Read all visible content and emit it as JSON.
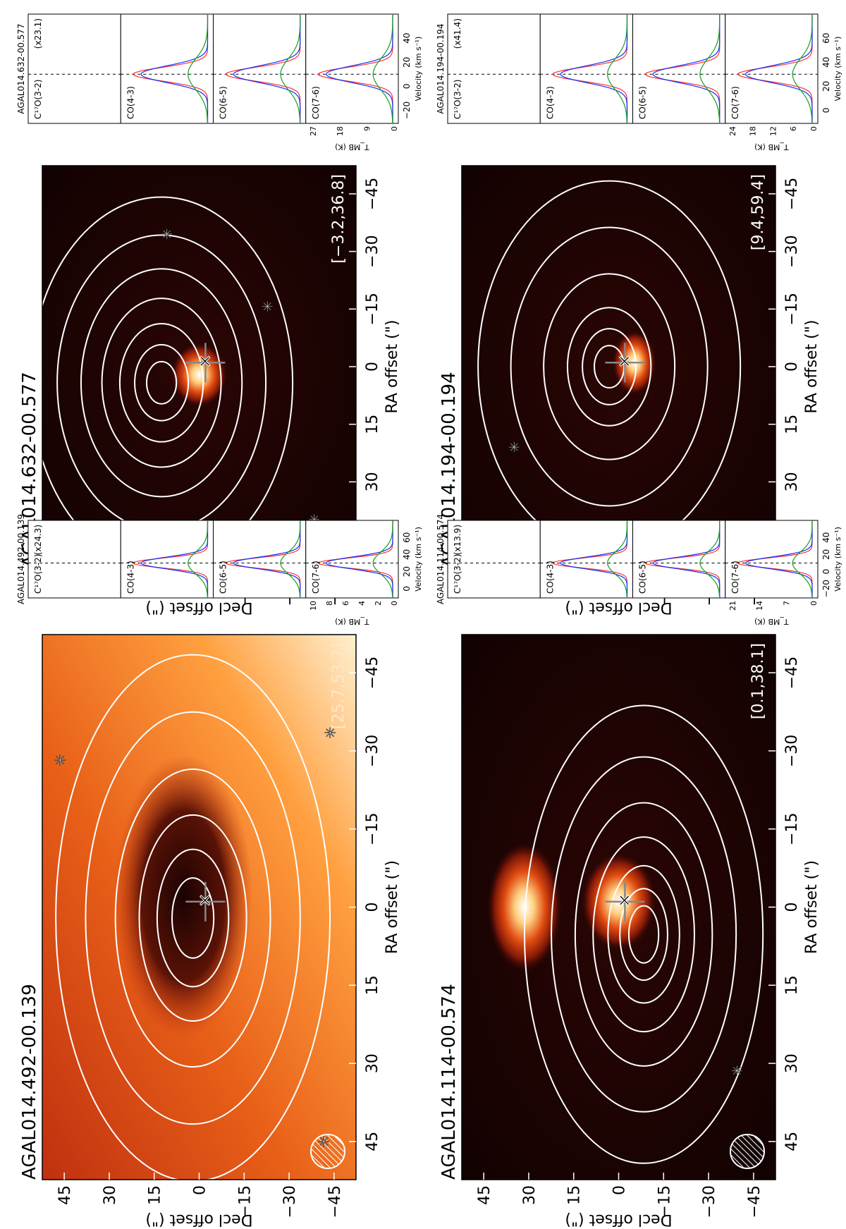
{
  "figure": {
    "panels": [
      {
        "source": "AGAL014.114-00.574",
        "map_range": "[0.1,38.1]",
        "map_style": "dark",
        "spec_names": [
          "C¹⁷O(3-2)",
          "CO(4-3)",
          "CO(6-5)",
          "CO(7-6)"
        ],
        "scale_factor": "(x13.9)",
        "tmb_ticks": [
          "0",
          "7",
          "14",
          "21"
        ],
        "vel_ticks": [
          "−20",
          "0",
          "20",
          "40"
        ],
        "vsys": 20
      },
      {
        "source": "AGAL014.194-00.194",
        "map_range": "[9.4,59.4]",
        "map_style": "dark",
        "spec_names": [
          "C¹⁷O(3-2)",
          "CO(4-3)",
          "CO(6-5)",
          "CO(7-6)"
        ],
        "scale_factor": "(x41.4)",
        "tmb_ticks": [
          "0",
          "6",
          "12",
          "18",
          "24"
        ],
        "vel_ticks": [
          "0",
          "20",
          "40",
          "60"
        ],
        "vsys": 40
      },
      {
        "source": "AGAL014.492-00.139",
        "map_range": "[25.7,53.7]",
        "map_style": "bright",
        "spec_names": [
          "C¹⁷O(3-2)",
          "CO(4-3)",
          "CO(6-5)",
          "CO(7-6)"
        ],
        "scale_factor": "(x24.3)",
        "tmb_ticks": [
          "0",
          "2",
          "4",
          "6",
          "8",
          "10"
        ],
        "vel_ticks": [
          "0",
          "20",
          "40",
          "60"
        ],
        "vsys": 40
      },
      {
        "source": "AGAL014.632-00.577",
        "map_range": "[−3.2,36.8]",
        "map_style": "dark",
        "spec_names": [
          "C¹⁷O(3-2)",
          "CO(4-3)",
          "CO(6-5)",
          "CO(7-6)"
        ],
        "scale_factor": "(x23.1)",
        "tmb_ticks": [
          "0",
          "9",
          "18",
          "27"
        ],
        "vel_ticks": [
          "−20",
          "0",
          "20",
          "40"
        ],
        "vsys": 20
      }
    ],
    "axes": {
      "ra_label": "RA offset (\")",
      "dec_label": "Decl offset (\")",
      "offset_ticks": [
        "45",
        "30",
        "15",
        "0",
        "−15",
        "−30",
        "−45"
      ],
      "tmb_label": "T_MB (K)",
      "velocity_label": "Velocity (km s⁻¹)"
    },
    "colors": {
      "contour": "#ffffff",
      "fit_total": "#ff3030",
      "fit_broad": "#1030ff",
      "fit_narrow": "#10a020",
      "fit_mid": "#ff9a10",
      "fit_base": "#9a5a20",
      "spectrum": "#000000"
    }
  }
}
